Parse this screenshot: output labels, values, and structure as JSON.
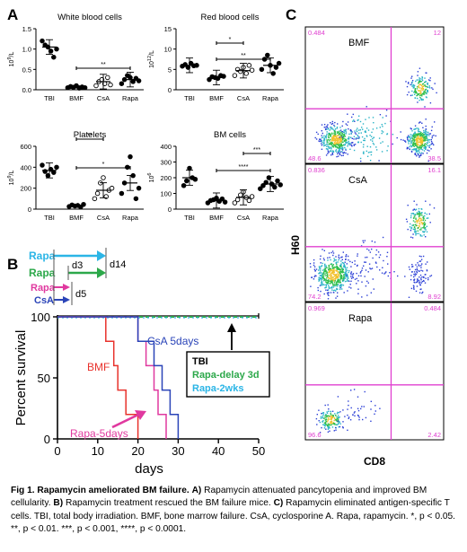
{
  "panel_labels": {
    "A": "A",
    "B": "B",
    "C": "C"
  },
  "colors": {
    "rapa_cyan": "#2bb5e6",
    "rapa_green": "#2ca84a",
    "rapa_magenta": "#e0399f",
    "csa_blue": "#2a44b8",
    "bmf_red": "#e8322c",
    "gate_magenta": "#e040d0"
  },
  "panel_a": {
    "significance": {
      "wbc": [
        "**"
      ],
      "rbc": [
        "**",
        "*"
      ],
      "plt": [
        "*",
        "**"
      ],
      "bm": [
        "****",
        "***"
      ]
    }
  },
  "panel_b": {
    "schedule": {
      "rapa1": "Rapa",
      "rapa2": "Rapa",
      "rapa3": "Rapa",
      "csa": "CsA",
      "d3": "d3",
      "d14": "d14",
      "d5": "d5"
    },
    "annotations": {
      "bmf": "BMF",
      "rapa_5days": "Rapa-5days",
      "csa_5days": "CsA 5days"
    },
    "legend": {
      "tbi": "TBI",
      "rapa_delay": "Rapa-delay 3d",
      "rapa_2wks": "Rapa-2wks"
    }
  },
  "panel_c": {
    "xlabel": "CD8",
    "ylabel": "H60",
    "plots": [
      {
        "label": "BMF",
        "q_ul": "0.484",
        "q_ur": "12",
        "q_ll": "48.6",
        "q_lr": "38.5"
      },
      {
        "label": "CsA",
        "q_ul": "0.836",
        "q_ur": "16.1",
        "q_ll": "74.2",
        "q_lr": "8.92"
      },
      {
        "label": "Rapa",
        "q_ul": "0.969",
        "q_ur": "0.484",
        "q_ll": "96.6",
        "q_lr": "2.42"
      }
    ]
  },
  "chart_data": [
    {
      "type": "scatter",
      "title": "White blood cells",
      "ylabel": "10^9/L",
      "categories": [
        "TBI",
        "BMF",
        "CsA",
        "Rapa"
      ],
      "ylim": [
        0,
        1.5
      ],
      "yticks": [
        "0.0",
        "0.5",
        "1.0",
        "1.5"
      ],
      "points": [
        [
          1.2,
          1.1,
          1.05,
          0.95,
          0.8,
          1.0
        ],
        [
          0.05,
          0.08,
          0.06,
          0.1,
          0.04,
          0.07,
          0.05
        ],
        [
          0.1,
          0.2,
          0.25,
          0.15,
          0.3,
          0.12
        ],
        [
          0.15,
          0.25,
          0.35,
          0.3,
          0.2,
          0.28,
          0.22
        ]
      ],
      "means": [
        1.05,
        0.07,
        0.2,
        0.25
      ]
    },
    {
      "type": "scatter",
      "title": "Red blood cells",
      "ylabel": "10^12/L",
      "categories": [
        "TBI",
        "BMF",
        "CsA",
        "Rapa"
      ],
      "ylim": [
        0,
        15
      ],
      "yticks": [
        "0",
        "5",
        "10",
        "15"
      ],
      "points": [
        [
          5.8,
          6.2,
          5.5,
          6.5,
          5.9,
          6.0
        ],
        [
          2.5,
          3.2,
          3.0,
          2.8,
          3.5,
          3.3
        ],
        [
          3.5,
          5.0,
          4.5,
          5.5,
          4.0,
          6.0,
          4.8
        ],
        [
          5.0,
          7.5,
          8.5,
          6.0,
          4.0,
          5.5,
          6.5
        ]
      ],
      "means": [
        6.0,
        3.0,
        4.7,
        6.0
      ]
    },
    {
      "type": "scatter",
      "title": "Platelets",
      "ylabel": "10^9/L",
      "categories": [
        "TBI",
        "BMF",
        "CsA",
        "Rapa"
      ],
      "ylim": [
        0,
        600
      ],
      "yticks": [
        "0",
        "200",
        "400",
        "600"
      ],
      "points": [
        [
          420,
          360,
          320,
          380,
          350,
          400
        ],
        [
          25,
          40,
          30,
          35,
          20,
          45
        ],
        [
          100,
          150,
          250,
          300,
          120,
          180,
          200
        ],
        [
          150,
          250,
          400,
          500,
          320,
          100,
          200
        ]
      ],
      "means": [
        370,
        30,
        180,
        250
      ]
    },
    {
      "type": "scatter",
      "title": "BM cells",
      "ylabel": "10^6",
      "categories": [
        "TBI",
        "BMF",
        "CsA",
        "Rapa"
      ],
      "ylim": [
        0,
        400
      ],
      "yticks": [
        "0",
        "100",
        "200",
        "300",
        "400"
      ],
      "points": [
        [
          150,
          180,
          260,
          200,
          190
        ],
        [
          40,
          55,
          60,
          70,
          50,
          65,
          45
        ],
        [
          40,
          60,
          90,
          110,
          75,
          55,
          80
        ],
        [
          130,
          150,
          170,
          200,
          160,
          140,
          180,
          155
        ]
      ],
      "means": [
        200,
        55,
        75,
        160
      ]
    },
    {
      "type": "line",
      "ylabel": "Percent survival",
      "xlabel": "days",
      "xlim": [
        0,
        50
      ],
      "ylim": [
        0,
        100
      ],
      "xticks": [
        "0",
        "10",
        "20",
        "30",
        "40",
        "50"
      ],
      "yticks": [
        "0",
        "50",
        "100"
      ],
      "series": [
        {
          "name": "TBI",
          "steps": [
            [
              0,
              100
            ],
            [
              50,
              100
            ]
          ]
        },
        {
          "name": "Rapa-delay 3d",
          "steps": [
            [
              0,
              100
            ],
            [
              50,
              100
            ]
          ]
        },
        {
          "name": "Rapa-2wks",
          "steps": [
            [
              0,
              100
            ],
            [
              50,
              100
            ]
          ]
        },
        {
          "name": "BMF",
          "steps": [
            [
              0,
              100
            ],
            [
              12,
              100
            ],
            [
              12,
              80
            ],
            [
              14,
              80
            ],
            [
              14,
              60
            ],
            [
              15,
              60
            ],
            [
              15,
              40
            ],
            [
              17,
              40
            ],
            [
              17,
              20
            ],
            [
              20,
              20
            ],
            [
              20,
              0
            ]
          ]
        },
        {
          "name": "Rapa-5days",
          "steps": [
            [
              0,
              100
            ],
            [
              20,
              100
            ],
            [
              20,
              80
            ],
            [
              22,
              80
            ],
            [
              22,
              60
            ],
            [
              24,
              60
            ],
            [
              24,
              40
            ],
            [
              25,
              40
            ],
            [
              25,
              20
            ],
            [
              27,
              20
            ],
            [
              27,
              0
            ]
          ]
        },
        {
          "name": "CsA 5days",
          "steps": [
            [
              0,
              100
            ],
            [
              20,
              100
            ],
            [
              20,
              80
            ],
            [
              24,
              80
            ],
            [
              24,
              60
            ],
            [
              26,
              60
            ],
            [
              26,
              40
            ],
            [
              28,
              40
            ],
            [
              28,
              20
            ],
            [
              30,
              20
            ],
            [
              30,
              0
            ]
          ]
        }
      ]
    }
  ],
  "caption": {
    "title": "Fig 1. Rapamycin ameliorated BM failure.",
    "a_label": "A)",
    "a_text": "Rapamycin attenuated pancytopenia and improved BM cellularity.",
    "b_label": "B)",
    "b_text": "Rapamycin treatment rescued the BM failure mice.",
    "c_label": "C)",
    "c_text": "Rapamycin eliminated antigen-specific T cells. TBI, total body irradiation. BMF, bone marrow failure. CsA, cyclosporine A. Rapa, rapamycin. *, p < 0.05. **, p < 0.01. ***, p < 0.001, ****, p < 0.0001."
  }
}
